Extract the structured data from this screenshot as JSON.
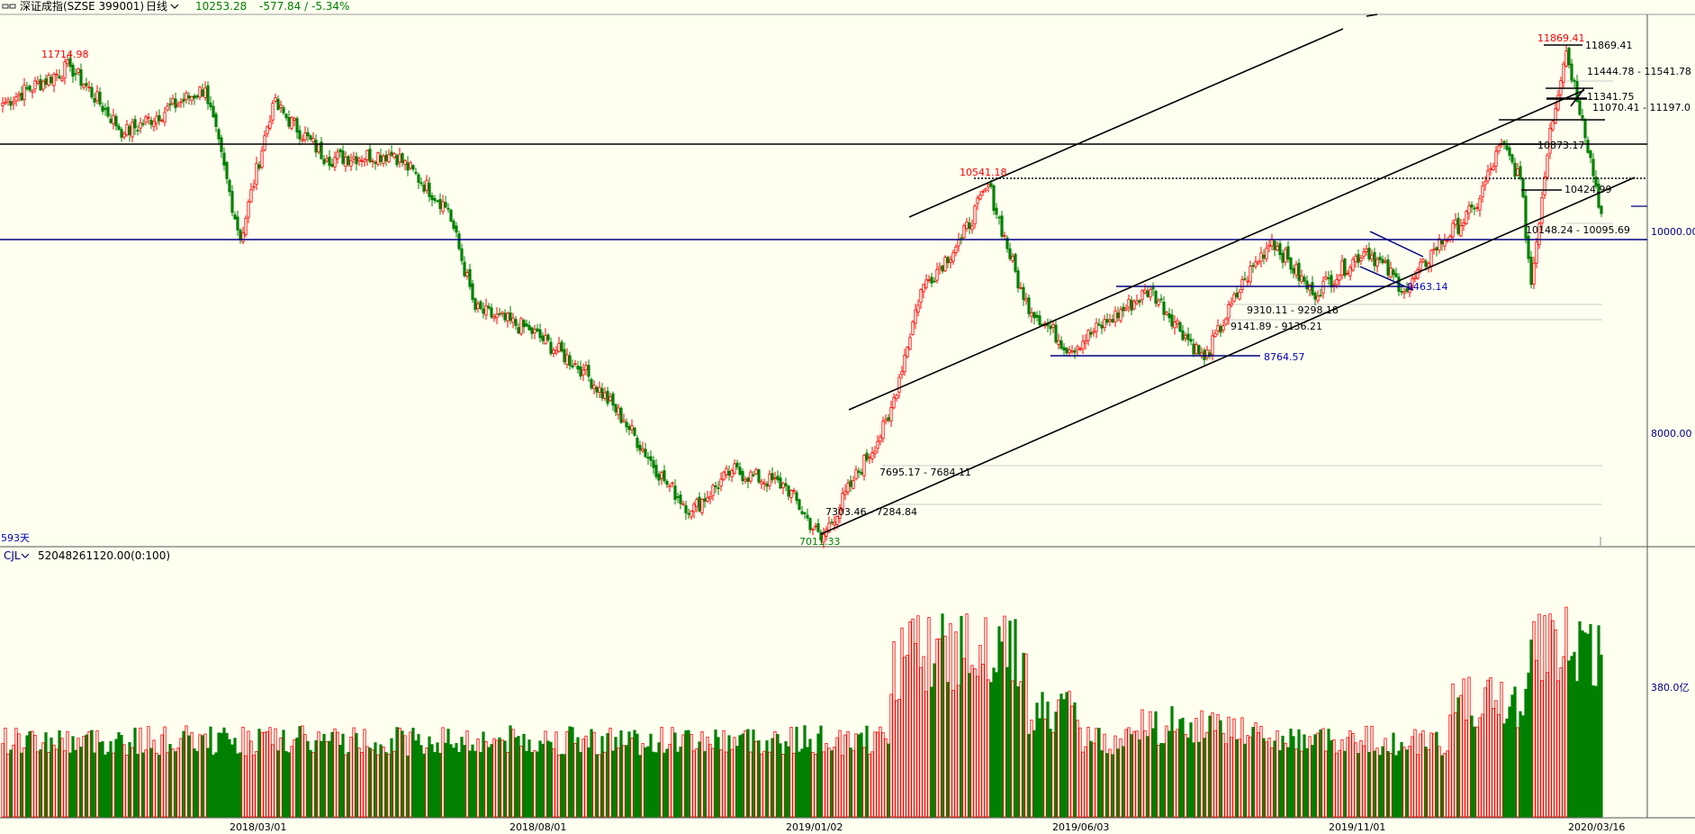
{
  "header": {
    "icon": "dual-line-icon",
    "symbol": "深证成指(SZSE 399001)",
    "period": "日线",
    "last": "10253.28",
    "change": "-577.84 / -5.34%",
    "colors": {
      "down": "#008000",
      "up": "#ff0000",
      "axis_line": "#000080"
    }
  },
  "price_panel": {
    "span_label": "593天",
    "axis_ticks": [
      "10000.00",
      "8000.00"
    ],
    "high_low_labels": [
      {
        "text": "11714.98",
        "color": "#ff0000"
      },
      {
        "text": "10541.18",
        "color": "#ff0000"
      },
      {
        "text": "11869.41",
        "color": "#ff0000"
      },
      {
        "text": "7011.33",
        "color": "#008000"
      }
    ],
    "level_labels": [
      {
        "text": "11869.41",
        "color": "#000000"
      },
      {
        "text": "11444.78 - 11541.78",
        "color": "#000000"
      },
      {
        "text": "11341.75",
        "color": "#000000"
      },
      {
        "text": "11070.41 - 11197.0",
        "color": "#000000"
      },
      {
        "text": "10873.17",
        "color": "#000000"
      },
      {
        "text": "10424.99",
        "color": "#000000"
      },
      {
        "text": "10148.24 - 10095.69",
        "color": "#000000"
      },
      {
        "text": "9463.14",
        "color": "#0000c0"
      },
      {
        "text": "9310.11 - 9298.18",
        "color": "#000000"
      },
      {
        "text": "9141.89 - 9136.21",
        "color": "#000000"
      },
      {
        "text": "8764.57",
        "color": "#0000c0"
      },
      {
        "text": "7695.17 - 7684.11",
        "color": "#000000"
      },
      {
        "text": "7303.46 - 7284.84",
        "color": "#000000"
      }
    ]
  },
  "volume_panel": {
    "name": "CJL",
    "value": "52048261120.00(0:100)",
    "axis_tick": "380.0亿"
  },
  "x_axis": {
    "dates": [
      "2018/03/01",
      "2018/08/01",
      "2019/01/02",
      "2019/06/03",
      "2019/11/01",
      "2020/03/16"
    ]
  },
  "chart_data": {
    "type": "candlestick",
    "title": "深证成指(SZSE 399001) 日线",
    "x_ticks": [
      "2018/03/01",
      "2018/08/01",
      "2019/01/02",
      "2019/06/03",
      "2019/11/01",
      "2020/03/16"
    ],
    "y_ticks": [
      10000,
      8000
    ],
    "ylim": [
      6960,
      12200
    ],
    "bar_count": 593,
    "key_points": [
      {
        "i": 0,
        "close": 11350
      },
      {
        "i": 25,
        "close": 11714.98,
        "label": "high"
      },
      {
        "i": 45,
        "close": 11050
      },
      {
        "i": 75,
        "close": 11500
      },
      {
        "i": 88,
        "close": 10000
      },
      {
        "i": 100,
        "close": 11350
      },
      {
        "i": 120,
        "close": 10800
      },
      {
        "i": 145,
        "close": 10850
      },
      {
        "i": 165,
        "close": 10300
      },
      {
        "i": 175,
        "close": 9300
      },
      {
        "i": 195,
        "close": 9100
      },
      {
        "i": 215,
        "close": 8700
      },
      {
        "i": 230,
        "close": 8200
      },
      {
        "i": 245,
        "close": 7600
      },
      {
        "i": 255,
        "close": 7300
      },
      {
        "i": 270,
        "close": 7700
      },
      {
        "i": 290,
        "close": 7550
      },
      {
        "i": 303,
        "close": 7011.33,
        "label": "low"
      },
      {
        "i": 315,
        "close": 7600
      },
      {
        "i": 328,
        "close": 8200
      },
      {
        "i": 340,
        "close": 9500
      },
      {
        "i": 355,
        "close": 10000
      },
      {
        "i": 365,
        "close": 10541.18,
        "label": "high"
      },
      {
        "i": 378,
        "close": 9400
      },
      {
        "i": 395,
        "close": 8900
      },
      {
        "i": 410,
        "close": 9200
      },
      {
        "i": 425,
        "close": 9500
      },
      {
        "i": 445,
        "close": 8800
      },
      {
        "i": 460,
        "close": 9600
      },
      {
        "i": 470,
        "close": 10000
      },
      {
        "i": 485,
        "close": 9450
      },
      {
        "i": 505,
        "close": 9900
      },
      {
        "i": 520,
        "close": 9480
      },
      {
        "i": 530,
        "close": 9900
      },
      {
        "i": 545,
        "close": 10300
      },
      {
        "i": 555,
        "close": 10950
      },
      {
        "i": 562,
        "close": 10600
      },
      {
        "i": 566,
        "close": 9550
      },
      {
        "i": 573,
        "close": 11100
      },
      {
        "i": 579,
        "close": 11869.41,
        "label": "high"
      },
      {
        "i": 585,
        "close": 11200
      },
      {
        "i": 592,
        "close": 10253.28
      }
    ],
    "horizontal_levels": [
      {
        "value": 10840,
        "color": "black",
        "style": "solid"
      },
      {
        "value": 10000,
        "color": "navy",
        "style": "solid"
      },
      {
        "value": 10541.18,
        "color": "black",
        "style": "dotted"
      },
      {
        "value": 9463.14,
        "color": "navy",
        "style": "solid"
      },
      {
        "value": 8764.57,
        "color": "navy",
        "style": "solid"
      }
    ],
    "trend_channel": [
      {
        "from": [
          303,
          7011
        ],
        "to": [
          592,
          10350
        ]
      },
      {
        "from": [
          315,
          8240
        ],
        "to": [
          588,
          11420
        ]
      },
      {
        "from": [
          337,
          10070
        ],
        "to": [
          500,
          12200
        ]
      }
    ],
    "volume": {
      "unit": "亿",
      "tick": 380
    }
  }
}
